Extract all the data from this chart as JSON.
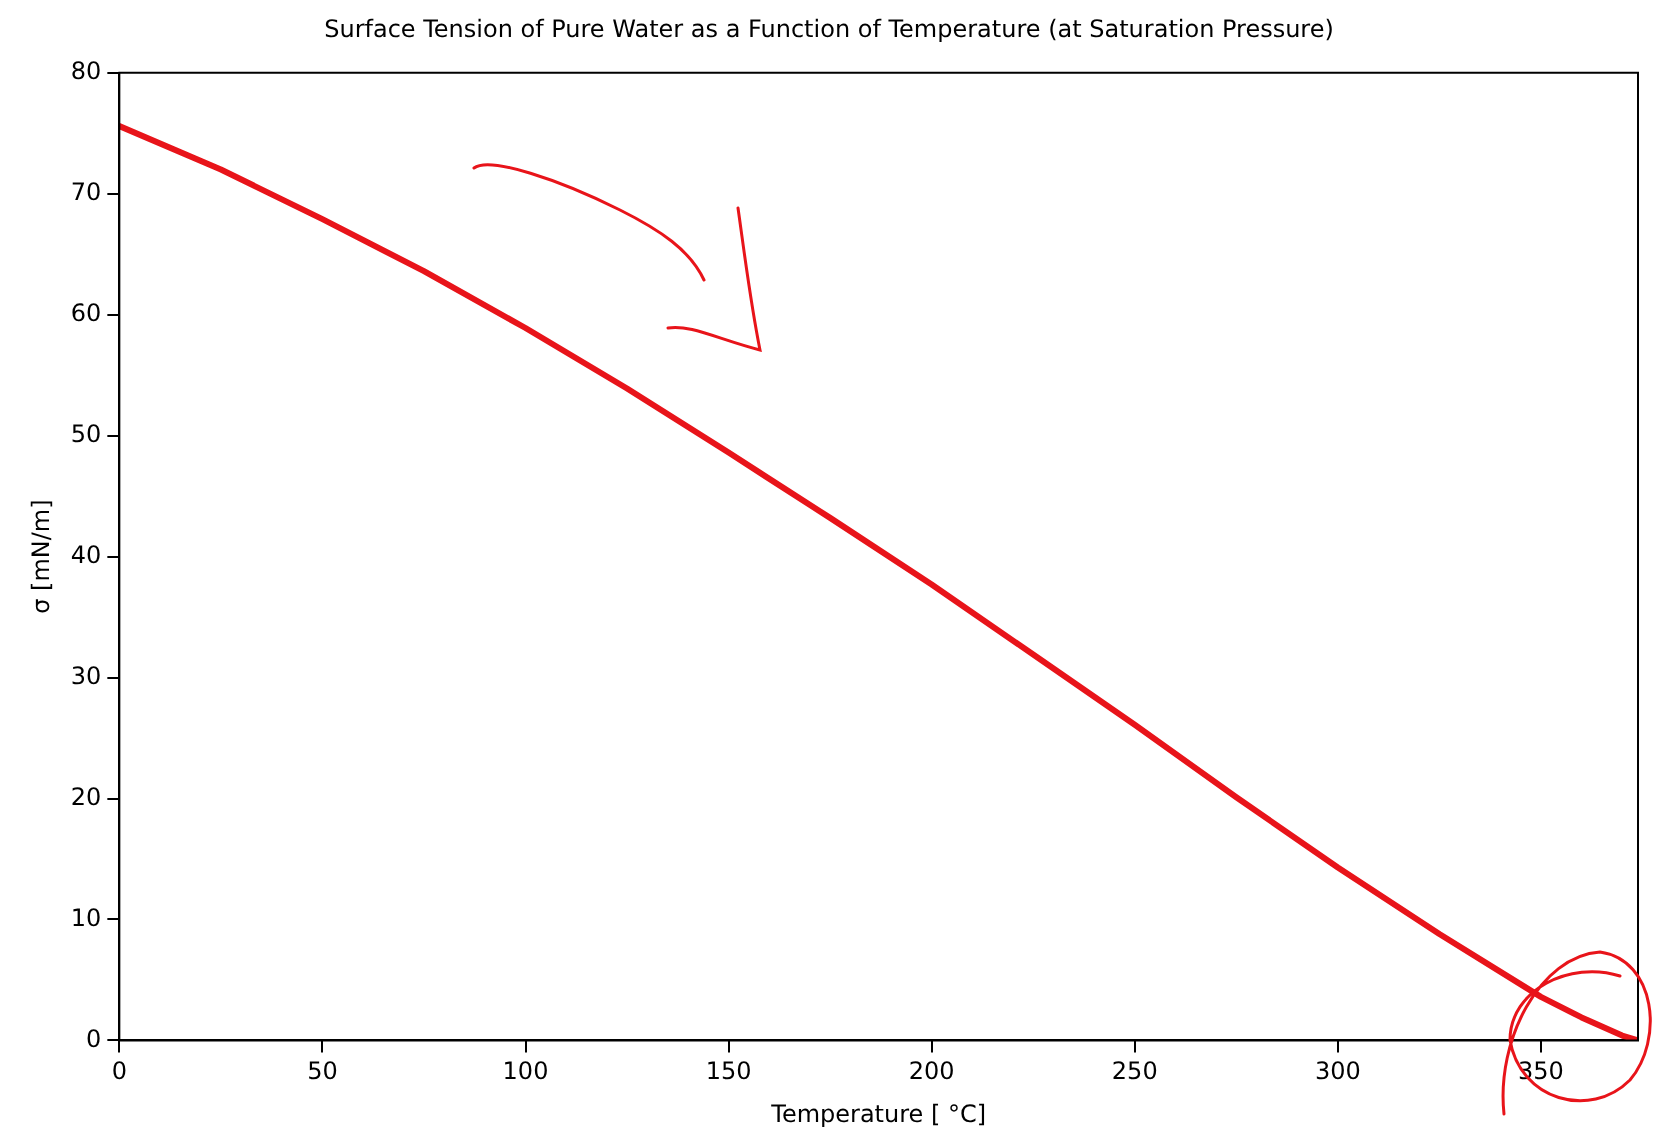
{
  "chart_data": {
    "type": "line",
    "title": "Surface Tension of Pure Water as a Function of Temperature (at Saturation Pressure)",
    "xlabel": "Temperature [ °C]",
    "ylabel": "σ [mN/m]",
    "x": [
      0,
      25,
      50,
      75,
      100,
      125,
      150,
      175,
      200,
      225,
      250,
      275,
      300,
      325,
      350,
      360,
      370,
      373.9
    ],
    "series": [
      {
        "color": "#e8141a",
        "values": [
          75.6,
          72.0,
          67.9,
          63.6,
          58.9,
          53.9,
          48.6,
          43.2,
          37.7,
          31.9,
          26.1,
          20.1,
          14.3,
          8.8,
          3.6,
          1.9,
          0.4,
          0
        ]
      }
    ],
    "xlim": [
      0,
      373.9
    ],
    "xticks": [
      0,
      50,
      100,
      150,
      200,
      250,
      300,
      350
    ],
    "ylim": [
      0,
      80
    ],
    "yticks": [
      0,
      10,
      20,
      30,
      40,
      50,
      60,
      70,
      80
    ],
    "grid": false,
    "legend": false,
    "marker": "none",
    "line_style": "solid"
  }
}
